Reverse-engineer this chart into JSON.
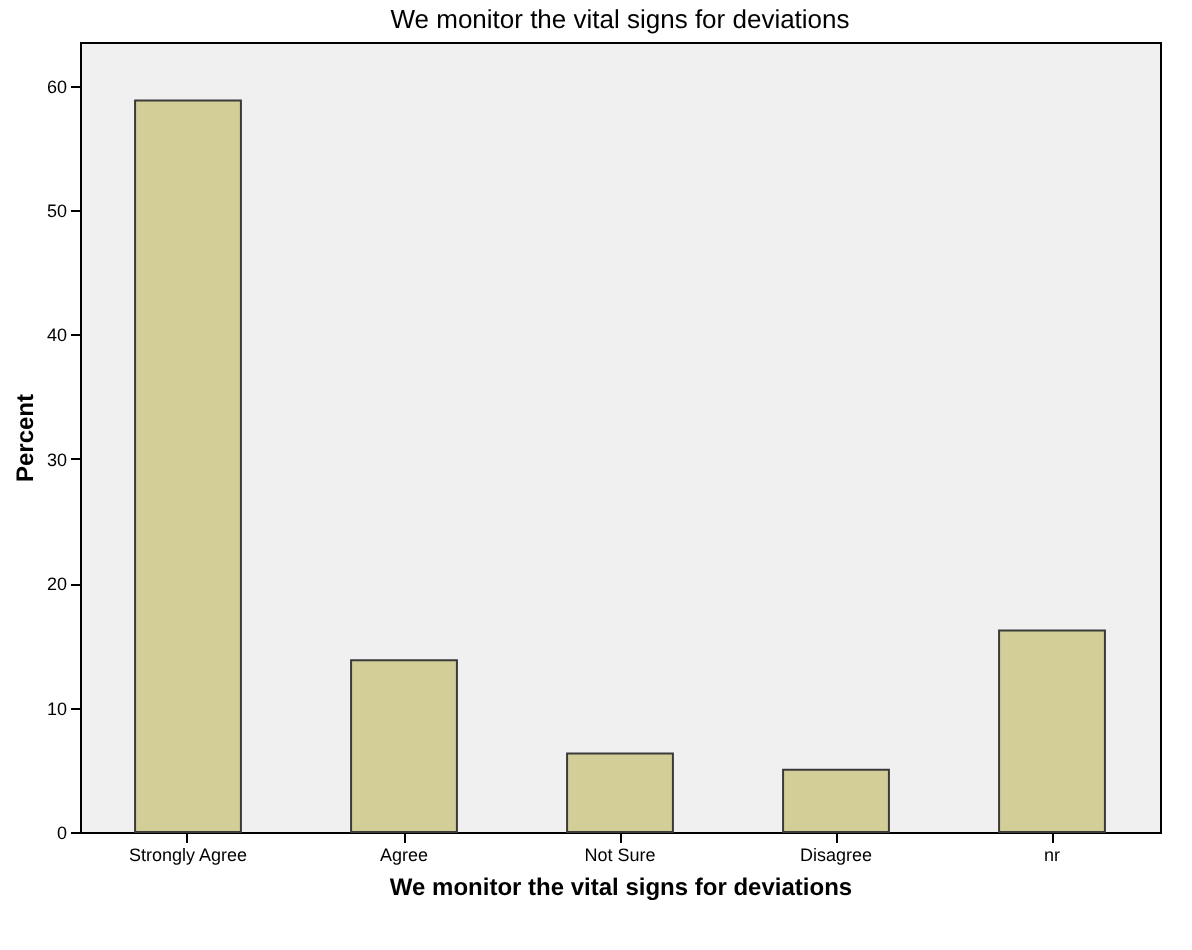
{
  "chart_data": {
    "type": "bar",
    "title": "We monitor the vital signs for deviations",
    "xlabel": "We monitor the vital signs for deviations",
    "ylabel": "Percent",
    "categories": [
      "Strongly Agree",
      "Agree",
      "Not Sure",
      "Disagree",
      "nr"
    ],
    "values": [
      58.8,
      13.8,
      6.3,
      5.0,
      16.2
    ],
    "color": "#d3ce97",
    "ylim": [
      0,
      63.5
    ],
    "yticks": [
      0,
      10,
      20,
      30,
      40,
      50,
      60
    ],
    "grid": false
  }
}
